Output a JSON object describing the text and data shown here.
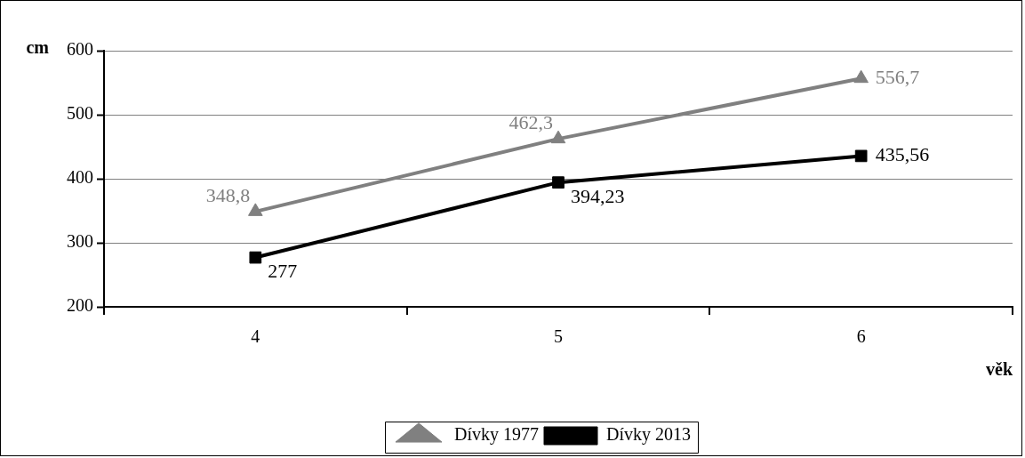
{
  "chart_data": {
    "type": "line",
    "categories": [
      "4",
      "5",
      "6"
    ],
    "xlabel": "věk",
    "ylabel": "cm",
    "ylim": [
      200,
      600
    ],
    "yticks": [
      200,
      300,
      400,
      500,
      600
    ],
    "grid": "y",
    "legend": "bottom",
    "line_style": "solid",
    "series": [
      {
        "name": "Dívky 1977",
        "color": "#808080",
        "marker": "triangle",
        "values": [
          348.8,
          462.3,
          556.7
        ],
        "value_labels": [
          "348,8",
          "462,3",
          "556,7"
        ]
      },
      {
        "name": "Dívky 2013",
        "color": "#000000",
        "marker": "square",
        "values": [
          277,
          394.23,
          435.56
        ],
        "value_labels": [
          "277",
          "394,23",
          "435,56"
        ]
      }
    ]
  }
}
